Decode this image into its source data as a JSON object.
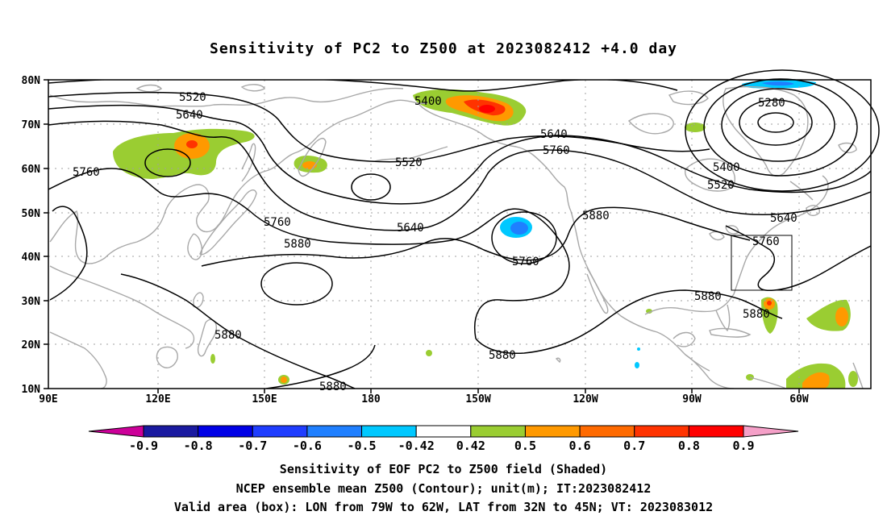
{
  "title": "Sensitivity of PC2 to Z500 at 2023082412 +4.0 day",
  "map": {
    "lat_labels": [
      "80N",
      "70N",
      "60N",
      "50N",
      "40N",
      "30N",
      "20N",
      "10N"
    ],
    "lon_labels": [
      "90E",
      "120E",
      "150E",
      "180",
      "150W",
      "120W",
      "90W",
      "60W"
    ],
    "contour_labels": [
      "5520",
      "5640",
      "5760",
      "5400",
      "5520",
      "5640",
      "5760",
      "5640",
      "5760",
      "5880",
      "5880",
      "5760",
      "5880",
      "5280",
      "5400",
      "5520",
      "5640",
      "5760",
      "5880",
      "5880",
      "5880",
      "5880"
    ],
    "valid_box": {
      "lon_from": "79W",
      "lon_to": "62W",
      "lat_from": "32N",
      "lat_to": "45N"
    }
  },
  "colorbar": {
    "ticks": [
      "-0.9",
      "-0.8",
      "-0.7",
      "-0.6",
      "-0.5",
      "-0.42",
      "0.42",
      "0.5",
      "0.6",
      "0.7",
      "0.8",
      "0.9"
    ],
    "colors": [
      "#cc0099",
      "#1a1aa0",
      "#0000e6",
      "#1f3dff",
      "#1f7fff",
      "#00c8ff",
      "#ffffff",
      "#9acd32",
      "#ff9900",
      "#ff6a00",
      "#ff3300",
      "#ff0000",
      "#f5a0c8"
    ]
  },
  "captions": {
    "line1": "Sensitivity of EOF PC2 to Z500 field (Shaded)",
    "line2": "NCEP ensemble mean Z500 (Contour); unit(m); IT:2023082412",
    "line3": "Valid area (box): LON from 79W to 62W, LAT from 32N to 45N; VT: 2023083012"
  }
}
